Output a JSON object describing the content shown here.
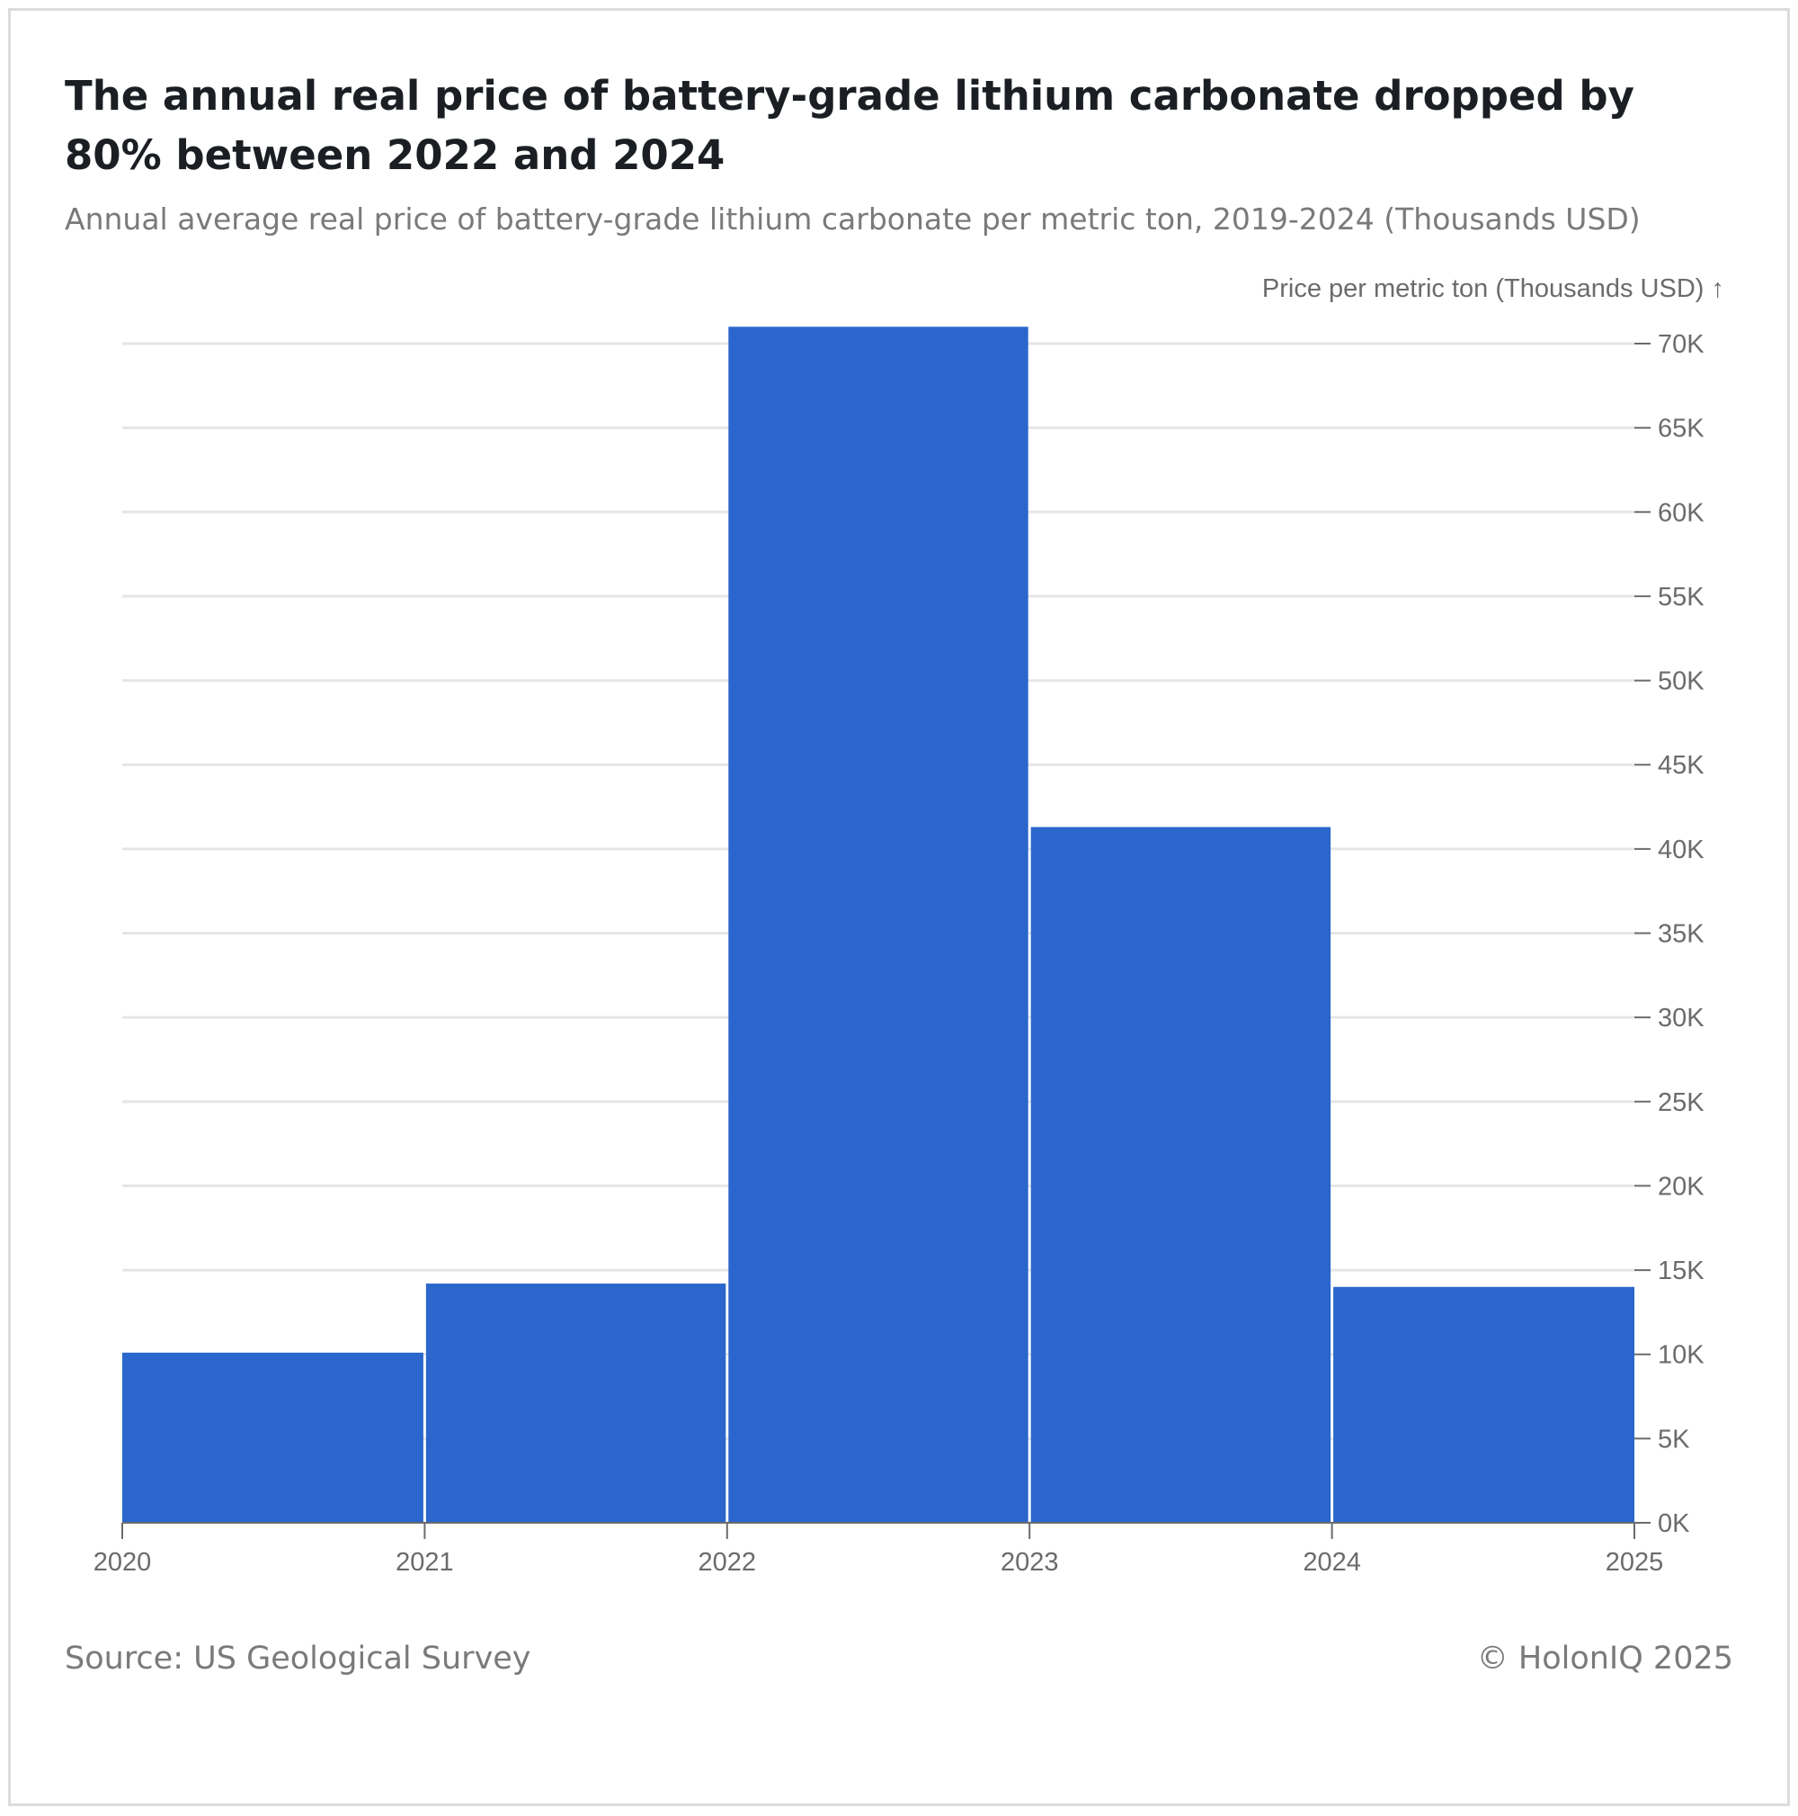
{
  "header": {
    "title": "The annual real price of battery-grade lithium carbonate dropped by 80% between 2022 and 2024",
    "subtitle": "Annual average real price of battery-grade lithium carbonate per metric ton, 2019-2024 (Thousands USD)"
  },
  "footer": {
    "source": "Source: US Geological Survey",
    "copyright": "© HolonIQ 2025"
  },
  "chart_data": {
    "type": "bar",
    "title": "The annual real price of battery-grade lithium carbonate dropped by 80% between 2022 and 2024",
    "subtitle": "Annual average real price of battery-grade lithium carbonate per metric ton, 2019-2024 (Thousands USD)",
    "ylabel": "Price per metric ton (Thousands USD) ↑",
    "xlabel": "",
    "bin_edges": [
      2020,
      2021,
      2022,
      2023,
      2024,
      2025
    ],
    "values": [
      10100,
      14200,
      71000,
      41300,
      14000
    ],
    "xlim": [
      2020,
      2025
    ],
    "ylim": [
      0,
      70000
    ],
    "x_ticks": [
      "2020",
      "2021",
      "2022",
      "2023",
      "2024",
      "2025"
    ],
    "y_ticks": [
      0,
      5000,
      10000,
      15000,
      20000,
      25000,
      30000,
      35000,
      40000,
      45000,
      50000,
      55000,
      60000,
      65000,
      70000
    ],
    "y_tick_labels": [
      "0K",
      "5K",
      "10K",
      "15K",
      "20K",
      "25K",
      "30K",
      "35K",
      "40K",
      "45K",
      "50K",
      "55K",
      "60K",
      "65K",
      "70K"
    ],
    "y_axis_side": "right",
    "grid": true,
    "legend": false,
    "bar_color": "#2a66cc",
    "grid_color": "#e6e6e6",
    "axis_color": "#6b6b6b"
  }
}
